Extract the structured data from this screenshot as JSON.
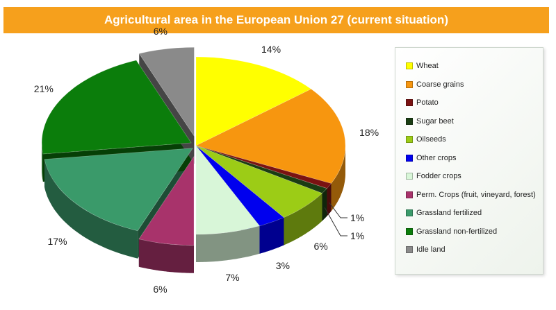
{
  "header": {
    "title": "Agricultural area in the European Union 27 (current situation)"
  },
  "chart_data": {
    "type": "pie",
    "title": "Agricultural area in the European Union 27 (current situation)",
    "legend_position": "right",
    "slices": [
      {
        "name": "Wheat",
        "value": 14,
        "label": "14%",
        "color": "#ffff00"
      },
      {
        "name": "Coarse grains",
        "value": 18,
        "label": "18%",
        "color": "#f7960f"
      },
      {
        "name": "Potato",
        "value": 1,
        "label": "1%",
        "color": "#7a1212"
      },
      {
        "name": "Sugar beet",
        "value": 1,
        "label": "1%",
        "color": "#1a3d13"
      },
      {
        "name": "Oilseeds",
        "value": 6,
        "label": "6%",
        "color": "#9ccc16"
      },
      {
        "name": "Other crops",
        "value": 3,
        "label": "3%",
        "color": "#0000ee"
      },
      {
        "name": "Fodder crops",
        "value": 7,
        "label": "7%",
        "color": "#d8f6d8"
      },
      {
        "name": "Perm. Crops (fruit, vineyard, forest)",
        "value": 6,
        "label": "6%",
        "color": "#a8336b"
      },
      {
        "name": "Grassland fertilized",
        "value": 17,
        "label": "17%",
        "color": "#3a9a6a"
      },
      {
        "name": "Grassland non-fertilized",
        "value": 21,
        "label": "21%",
        "color": "#0b7d0b"
      },
      {
        "name": "Idle land",
        "value": 6,
        "label": "6%",
        "color": "#8a8a8a"
      }
    ]
  }
}
